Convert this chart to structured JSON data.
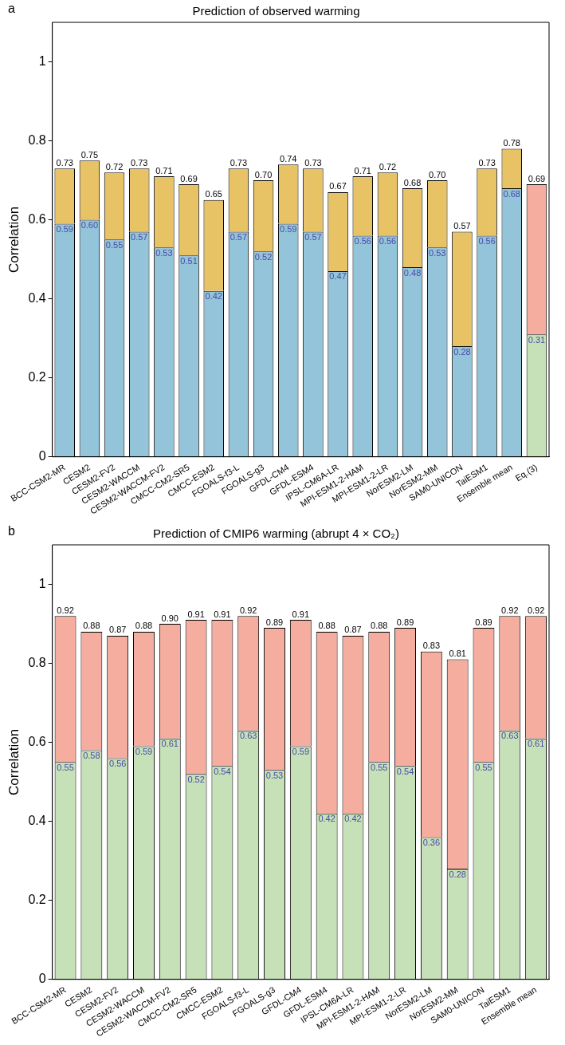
{
  "chart_data": [
    {
      "type": "bar",
      "title": "Prediction of observed warming",
      "ylabel": "Correlation",
      "annotations": [
        "a"
      ],
      "stacked": true,
      "categories": [
        "BCC-CSM2-MR",
        "CESM2",
        "CESM2-FV2",
        "CESM2-WACCM",
        "CESM2-WACCM-FV2",
        "CMCC-CM2-SR5",
        "CMCC-ESM2",
        "FGOALS-f3-L",
        "FGOALS-g3",
        "GFDL-CM4",
        "GFDL-ESM4",
        "IPSL-CM6A-LR",
        "MPI-ESM1-2-HAM",
        "MPI-ESM1-2-LR",
        "NorESM2-LM",
        "NorESM2-MM",
        "SAM0-UNICON",
        "TaiESM1",
        "Ensemble mean",
        "Eq.(3)"
      ],
      "series": [
        {
          "colors": [
            "#93c4da",
            "#93c4da",
            "#93c4da",
            "#93c4da",
            "#93c4da",
            "#93c4da",
            "#93c4da",
            "#93c4da",
            "#93c4da",
            "#93c4da",
            "#93c4da",
            "#93c4da",
            "#93c4da",
            "#93c4da",
            "#93c4da",
            "#93c4da",
            "#93c4da",
            "#93c4da",
            "#93c4da",
            "#c6e0b7"
          ],
          "values": [
            0.59,
            0.6,
            0.55,
            0.57,
            0.53,
            0.51,
            0.42,
            0.57,
            0.52,
            0.59,
            0.57,
            0.47,
            0.56,
            0.56,
            0.48,
            0.53,
            0.28,
            0.56,
            0.68,
            0.31
          ],
          "value_labels": [
            "0.59",
            "0.60",
            "0.55",
            "0.57",
            "0.53",
            "0.51",
            "0.42",
            "0.57",
            "0.52",
            "0.59",
            "0.57",
            "0.47",
            "0.56",
            "0.56",
            "0.48",
            "0.53",
            "0.28",
            "0.56",
            "0.68",
            "0.31"
          ]
        },
        {
          "colors": [
            "#e8c366",
            "#e8c366",
            "#e8c366",
            "#e8c366",
            "#e8c366",
            "#e8c366",
            "#e8c366",
            "#e8c366",
            "#e8c366",
            "#e8c366",
            "#e8c366",
            "#e8c366",
            "#e8c366",
            "#e8c366",
            "#e8c366",
            "#e8c366",
            "#e8c366",
            "#e8c366",
            "#e8c366",
            "#f4ad9e"
          ],
          "values": [
            0.14,
            0.15,
            0.17,
            0.16,
            0.18,
            0.18,
            0.23,
            0.16,
            0.18,
            0.15,
            0.16,
            0.2,
            0.15,
            0.16,
            0.2,
            0.17,
            0.29,
            0.17,
            0.1,
            0.38
          ]
        }
      ],
      "totals": [
        "0.73",
        "0.75",
        "0.72",
        "0.73",
        "0.71",
        "0.69",
        "0.65",
        "0.73",
        "0.70",
        "0.74",
        "0.73",
        "0.67",
        "0.71",
        "0.72",
        "0.68",
        "0.70",
        "0.57",
        "0.73",
        "0.78",
        "0.69"
      ],
      "ylim": [
        0,
        1.1
      ],
      "yticks": [
        0,
        0.2,
        0.4,
        0.6,
        0.8,
        1
      ],
      "grid": false,
      "legend": false
    },
    {
      "type": "bar",
      "title": "Prediction of CMIP6 warming (abrupt 4 × CO₂)",
      "ylabel": "Correlation",
      "annotations": [
        "b"
      ],
      "stacked": true,
      "categories": [
        "BCC-CSM2-MR",
        "CESM2",
        "CESM2-FV2",
        "CESM2-WACCM",
        "CESM2-WACCM-FV2",
        "CMCC-CM2-SR5",
        "CMCC-ESM2",
        "FGOALS-f3-L",
        "FGOALS-g3",
        "GFDL-CM4",
        "GFDL-ESM4",
        "IPSL-CM6A-LR",
        "MPI-ESM1-2-HAM",
        "MPI-ESM1-2-LR",
        "NorESM2-LM",
        "NorESM2-MM",
        "SAM0-UNICON",
        "TaiESM1",
        "Ensemble mean"
      ],
      "series": [
        {
          "color": "#c6e0b7",
          "values": [
            0.55,
            0.58,
            0.56,
            0.59,
            0.61,
            0.52,
            0.54,
            0.63,
            0.53,
            0.59,
            0.42,
            0.42,
            0.55,
            0.54,
            0.36,
            0.28,
            0.55,
            0.63,
            0.61
          ],
          "value_labels": [
            "0.55",
            "0.58",
            "0.56",
            "0.59",
            "0.61",
            "0.52",
            "0.54",
            "0.63",
            "0.53",
            "0.59",
            "0.42",
            "0.42",
            "0.55",
            "0.54",
            "0.36",
            "0.28",
            "0.55",
            "0.63",
            "0.61"
          ]
        },
        {
          "color": "#f4ad9e",
          "values": [
            0.37,
            0.3,
            0.31,
            0.29,
            0.29,
            0.39,
            0.37,
            0.29,
            0.36,
            0.32,
            0.46,
            0.45,
            0.33,
            0.35,
            0.47,
            0.53,
            0.34,
            0.29,
            0.31
          ]
        }
      ],
      "totals": [
        "0.92",
        "0.88",
        "0.87",
        "0.88",
        "0.90",
        "0.91",
        "0.91",
        "0.92",
        "0.89",
        "0.91",
        "0.88",
        "0.87",
        "0.88",
        "0.89",
        "0.83",
        "0.81",
        "0.89",
        "0.92",
        "0.92"
      ],
      "ylim": [
        0,
        1.1
      ],
      "yticks": [
        0,
        0.2,
        0.4,
        0.6,
        0.8,
        1
      ],
      "grid": false,
      "legend": false
    }
  ]
}
